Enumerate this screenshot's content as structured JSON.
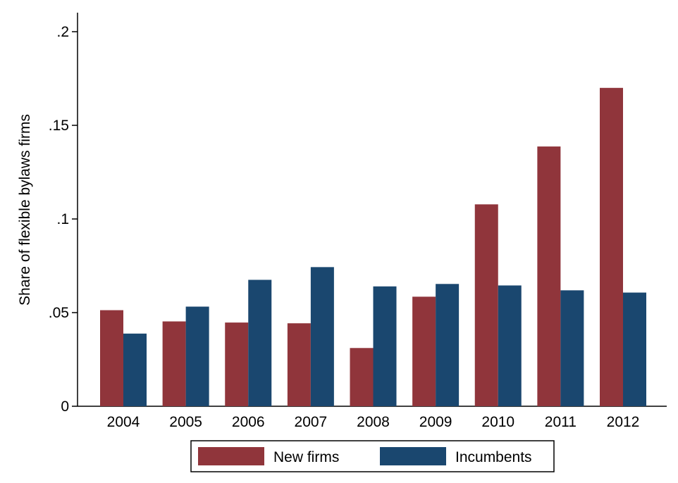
{
  "chart_data": {
    "type": "bar",
    "title": "",
    "xlabel": "",
    "ylabel": "Share of flexible bylaws firms",
    "categories": [
      "2004",
      "2005",
      "2006",
      "2007",
      "2008",
      "2009",
      "2010",
      "2011",
      "2012"
    ],
    "series": [
      {
        "name": "New firms",
        "color": "#90353b",
        "values": [
          0.0513,
          0.0453,
          0.0447,
          0.0443,
          0.0311,
          0.0585,
          0.1078,
          0.1387,
          0.17
        ]
      },
      {
        "name": "Incumbents",
        "color": "#1a476f",
        "values": [
          0.0388,
          0.0532,
          0.0675,
          0.0743,
          0.064,
          0.0653,
          0.0645,
          0.0619,
          0.0607
        ]
      }
    ],
    "ylim": [
      0,
      0.2
    ],
    "yticks": [
      0,
      0.05,
      0.1,
      0.15,
      0.2
    ],
    "ytick_labels": [
      "0",
      ".05",
      ".1",
      ".15",
      ".2"
    ],
    "grid": false,
    "legend_position": "bottom"
  }
}
